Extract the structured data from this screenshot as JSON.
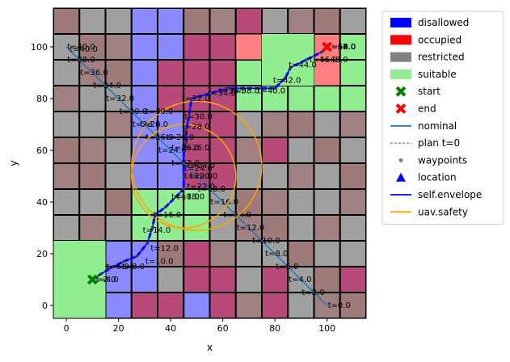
{
  "chart_data": {
    "type": "scatter",
    "title": "",
    "xlabel": "x",
    "ylabel": "y",
    "xlim": [
      -5,
      115
    ],
    "ylim": [
      -5,
      115
    ],
    "xticks": [
      0,
      20,
      40,
      60,
      80,
      100
    ],
    "yticks": [
      0,
      20,
      40,
      60,
      80,
      100
    ],
    "grid": false,
    "legend_position": "outside-right",
    "colors": {
      "disallowed": "#8080ff",
      "occupied": "#ff8080",
      "restricted": "#a0a0a0",
      "suitable": "#90ee90",
      "start": "#008000",
      "end": "#ff0000",
      "nominal": "#1f77b4",
      "plan": "#808080",
      "waypoints": "#808080",
      "location": "#0000ff",
      "envelope": "#0000ff",
      "safety": "#ffa500"
    },
    "legend": [
      {
        "label": "disallowed",
        "kind": "patch",
        "color": "#0000ff"
      },
      {
        "label": "occupied",
        "kind": "patch",
        "color": "#ff0000"
      },
      {
        "label": "restricted",
        "kind": "patch",
        "color": "#808080"
      },
      {
        "label": "suitable",
        "kind": "patch",
        "color": "#90ee90"
      },
      {
        "label": "start",
        "kind": "x",
        "color": "#008000"
      },
      {
        "label": "end",
        "kind": "x",
        "color": "#ff0000"
      },
      {
        "label": "nominal",
        "kind": "line",
        "color": "#1f77b4"
      },
      {
        "label": "plan t=0",
        "kind": "dashed",
        "color": "#808080"
      },
      {
        "label": "waypoints",
        "kind": "dot",
        "color": "#808080"
      },
      {
        "label": "location",
        "kind": "triangle",
        "color": "#0000ff"
      },
      {
        "label": "self.envelope",
        "kind": "line",
        "color": "#0000ff"
      },
      {
        "label": "uav.safety",
        "kind": "line",
        "color": "#ffa500"
      }
    ],
    "grid_cells": {
      "x_edges": [
        -5,
        5,
        15,
        25,
        35,
        45,
        55,
        65,
        75,
        85,
        95,
        105,
        115
      ],
      "y_edges": [
        -5,
        5,
        15,
        25,
        35,
        45,
        55,
        65,
        75,
        85,
        95,
        105,
        115
      ],
      "rows_top_to_bottom": [
        [
          "R",
          "R",
          "R",
          "D",
          "D",
          "R",
          "R",
          "M",
          "R",
          "R",
          "R",
          "R"
        ],
        [
          "R",
          "R",
          "R",
          "D",
          "D",
          "M",
          "M",
          "O",
          "S",
          "S",
          "O",
          "S"
        ],
        [
          "R",
          "R",
          "R",
          "D",
          "M",
          "M",
          "M",
          "S",
          "S",
          "S",
          "S",
          "S"
        ],
        [
          "R",
          "R",
          "R",
          "D",
          "M",
          "M",
          "M",
          "S",
          "S",
          "S",
          "S",
          "S"
        ],
        [
          "R",
          "R",
          "R",
          "D",
          "D",
          "M",
          "M",
          "R",
          "R",
          "R",
          "R",
          "R"
        ],
        [
          "R",
          "R",
          "R",
          "D",
          "D",
          "M",
          "M",
          "R",
          "M",
          "R",
          "R",
          "R"
        ],
        [
          "R",
          "R",
          "R",
          "D",
          "D",
          "M",
          "M",
          "R",
          "R",
          "R",
          "R",
          "R"
        ],
        [
          "R",
          "R",
          "R",
          "S",
          "S",
          "S",
          "R",
          "R",
          "R",
          "R",
          "R",
          "R"
        ],
        [
          "R",
          "R",
          "R",
          "S",
          "S",
          "S",
          "R",
          "R",
          "R",
          "R",
          "R",
          "R"
        ],
        [
          "R",
          "R",
          "D",
          "D",
          "R",
          "M",
          "R",
          "R",
          "R",
          "R",
          "R",
          "R"
        ],
        [
          "S",
          "O",
          "D",
          "D",
          "R",
          "M",
          "M",
          "R",
          "M",
          "R",
          "R",
          "M"
        ],
        [
          "S",
          "S",
          "D",
          "M",
          "M",
          "D",
          "M",
          "R",
          "M",
          "R",
          "R",
          "R"
        ]
      ]
    },
    "overlay_patches": [
      {
        "category": "occupied",
        "x": 5,
        "y": 15,
        "w": 10,
        "h": 10
      },
      {
        "category": "occupied",
        "x": 65,
        "y": 95,
        "w": 10,
        "h": 10
      },
      {
        "category": "occupied",
        "x": 95,
        "y": 85,
        "w": 10,
        "h": 10
      },
      {
        "category": "suitable",
        "x": 75,
        "y": 85,
        "w": 20,
        "h": 20
      },
      {
        "category": "suitable",
        "x": -5,
        "y": -5,
        "w": 20,
        "h": 30
      }
    ],
    "nominal": {
      "points": [
        [
          0,
          100
        ],
        [
          100,
          0
        ]
      ],
      "labels": [
        {
          "t": "t=0.0",
          "x": 100,
          "y": 0
        },
        {
          "t": "t=2.0",
          "x": 90,
          "y": 5
        },
        {
          "t": "t=4.0",
          "x": 85,
          "y": 10
        },
        {
          "t": "t=6.0",
          "x": 80,
          "y": 15
        },
        {
          "t": "t=8.0",
          "x": 76,
          "y": 20
        },
        {
          "t": "t=10.0",
          "x": 71,
          "y": 25
        },
        {
          "t": "t=12.0",
          "x": 65,
          "y": 30
        },
        {
          "t": "t=14.0",
          "x": 60,
          "y": 35
        },
        {
          "t": "t=16.0",
          "x": 55,
          "y": 40
        },
        {
          "t": "t=18.0",
          "x": 50,
          "y": 45
        },
        {
          "t": "t=20.0",
          "x": 45,
          "y": 50
        },
        {
          "t": "t=22.0",
          "x": 40,
          "y": 55
        },
        {
          "t": "t=24.0",
          "x": 35,
          "y": 60
        },
        {
          "t": "t=26.0",
          "x": 30,
          "y": 65
        },
        {
          "t": "t=28.0",
          "x": 25,
          "y": 70
        },
        {
          "t": "t=30.0",
          "x": 20,
          "y": 75
        },
        {
          "t": "t=32.0",
          "x": 15,
          "y": 80
        },
        {
          "t": "t=34.0",
          "x": 10,
          "y": 85
        },
        {
          "t": "t=36.0",
          "x": 5,
          "y": 90
        },
        {
          "t": "t=38.0",
          "x": 0,
          "y": 95
        },
        {
          "t": "t=40.0",
          "x": 0,
          "y": 100
        },
        {
          "t": "t=40.0",
          "x": 1,
          "y": 99
        }
      ]
    },
    "actual_path": {
      "points": [
        [
          10,
          10
        ],
        [
          13,
          12
        ],
        [
          18,
          15
        ],
        [
          22,
          17
        ],
        [
          27,
          19
        ],
        [
          31,
          24
        ],
        [
          33,
          30
        ],
        [
          34,
          35
        ],
        [
          38,
          38
        ],
        [
          42,
          42
        ],
        [
          45,
          45
        ],
        [
          45,
          50
        ],
        [
          45,
          55
        ],
        [
          45,
          60
        ],
        [
          46,
          63
        ],
        [
          46,
          68
        ],
        [
          47,
          73
        ],
        [
          48,
          80
        ],
        [
          55,
          82
        ],
        [
          62,
          84
        ],
        [
          68,
          84
        ],
        [
          74,
          84
        ],
        [
          80,
          84
        ],
        [
          84,
          88
        ],
        [
          86,
          92
        ],
        [
          92,
          95
        ],
        [
          98,
          98
        ],
        [
          100,
          100
        ]
      ],
      "labels": [
        {
          "t": "t=2.0",
          "x": 10,
          "y": 10
        },
        {
          "t": "t=4.0",
          "x": 11,
          "y": 10
        },
        {
          "t": "t=6.0",
          "x": 15,
          "y": 15
        },
        {
          "t": "t=8.0",
          "x": 21,
          "y": 15
        },
        {
          "t": "t=10.0",
          "x": 30,
          "y": 17
        },
        {
          "t": "t=12.0",
          "x": 32,
          "y": 22
        },
        {
          "t": "t=14.0",
          "x": 29,
          "y": 29
        },
        {
          "t": "t=16.0",
          "x": 33,
          "y": 35
        },
        {
          "t": "t=18.0",
          "x": 40,
          "y": 42
        },
        {
          "t": "t=18.0",
          "x": 42,
          "y": 42
        },
        {
          "t": "t=20.0",
          "x": 47,
          "y": 50
        },
        {
          "t": "t=22.0",
          "x": 46,
          "y": 46
        },
        {
          "t": "t=24.0",
          "x": 45,
          "y": 53
        },
        {
          "t": "t=24.0",
          "x": 46,
          "y": 54
        },
        {
          "t": "t=26.0",
          "x": 40,
          "y": 61
        },
        {
          "t": "t=26.0",
          "x": 44,
          "y": 61
        },
        {
          "t": "t=26.0",
          "x": 38,
          "y": 65
        },
        {
          "t": "t=28.0",
          "x": 28,
          "y": 70
        },
        {
          "t": "t=28.0",
          "x": 44,
          "y": 69
        },
        {
          "t": "t=30.0",
          "x": 30,
          "y": 75
        },
        {
          "t": "t=30.0",
          "x": 45,
          "y": 73
        },
        {
          "t": "t=32.0",
          "x": 44,
          "y": 80
        },
        {
          "t": "t=34.0",
          "x": 54,
          "y": 82
        },
        {
          "t": "t=36.0",
          "x": 58,
          "y": 83
        },
        {
          "t": "t=38.0",
          "x": 63,
          "y": 83
        },
        {
          "t": "t=40.0",
          "x": 73,
          "y": 83
        },
        {
          "t": "t=42.0",
          "x": 79,
          "y": 87
        },
        {
          "t": "t=44.0",
          "x": 85,
          "y": 93
        },
        {
          "t": "t=46.0",
          "x": 93,
          "y": 95
        },
        {
          "t": "t=48.0",
          "x": 97,
          "y": 95
        },
        {
          "t": "t=50.0",
          "x": 100,
          "y": 100
        },
        {
          "t": "t=52.0",
          "x": 100,
          "y": 100
        },
        {
          "t": "t=54.0",
          "x": 100,
          "y": 100
        },
        {
          "t": "t=56.0",
          "x": 100,
          "y": 100
        },
        {
          "t": "t=58.0",
          "x": 100,
          "y": 100
        },
        {
          "t": "t=60.0",
          "x": 100,
          "y": 100
        },
        {
          "t": "t=62.0",
          "x": 100,
          "y": 100
        }
      ]
    },
    "start": {
      "x": 10,
      "y": 10
    },
    "end": {
      "x": 100,
      "y": 100
    },
    "safety_circles": [
      {
        "cx": 50,
        "cy": 54,
        "r": 25
      },
      {
        "cx": 45,
        "cy": 50,
        "r": 20
      }
    ]
  }
}
